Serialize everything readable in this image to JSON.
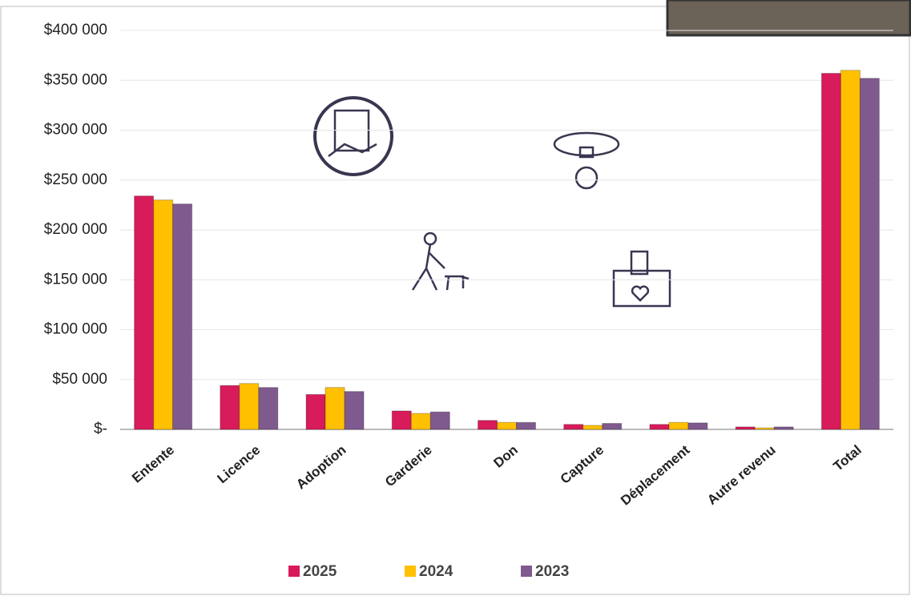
{
  "chart_data": {
    "type": "bar",
    "categories": [
      "Entente",
      "Licence",
      "Adoption",
      "Garderie",
      "Don",
      "Capture",
      "Déplacement",
      "Autre revenu",
      "Total"
    ],
    "series": [
      {
        "name": "2025",
        "color": "#d81b5a",
        "values": [
          234000,
          44000,
          35000,
          18500,
          9000,
          5000,
          5000,
          2500,
          357000
        ]
      },
      {
        "name": "2024",
        "color": "#ffc000",
        "values": [
          230000,
          46000,
          42000,
          16000,
          7000,
          4000,
          7000,
          1500,
          360000
        ]
      },
      {
        "name": "2023",
        "color": "#7f5a8e",
        "values": [
          226000,
          42000,
          38000,
          17500,
          7000,
          6000,
          6500,
          2500,
          352000
        ]
      }
    ],
    "ylim": [
      0,
      400000
    ],
    "yticks": [
      {
        "value": 0,
        "label": "$-"
      },
      {
        "value": 50000,
        "label": "$50 000"
      },
      {
        "value": 100000,
        "label": "$100 000"
      },
      {
        "value": 150000,
        "label": "$150 000"
      },
      {
        "value": 200000,
        "label": "$200 000"
      },
      {
        "value": 250000,
        "label": "$250 000"
      },
      {
        "value": 300000,
        "label": "$300 000"
      },
      {
        "value": 350000,
        "label": "$350 000"
      },
      {
        "value": 400000,
        "label": "$400 000"
      }
    ],
    "grid": true,
    "legend": "bottom"
  }
}
